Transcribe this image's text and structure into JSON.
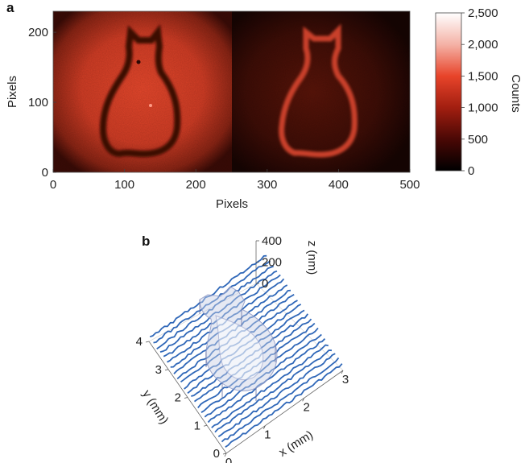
{
  "panels": {
    "a": {
      "letter": "a",
      "xlabel": "Pixels",
      "ylabel": "Pixels",
      "x_ticks": [
        "0",
        "100",
        "200",
        "300",
        "400",
        "500"
      ],
      "y_ticks": [
        "0",
        "100",
        "200"
      ],
      "colorbar": {
        "label": "Counts",
        "ticks": [
          "0",
          "500",
          "1,000",
          "1,500",
          "2,000",
          "2,500"
        ],
        "colors": [
          "#000000",
          "#4a0805",
          "#a21e10",
          "#e8442a",
          "#f4b2a6",
          "#ffffff"
        ]
      }
    },
    "b": {
      "letter": "b",
      "xlabel": "x (mm)",
      "ylabel": "y (mm)",
      "zlabel": "z (nm)",
      "x_ticks": [
        "0",
        "1",
        "2",
        "3"
      ],
      "y_ticks": [
        "0",
        "1",
        "2",
        "3",
        "4"
      ],
      "z_ticks": [
        "0",
        "200",
        "400"
      ],
      "trace_color": "#2f67b8"
    }
  },
  "chart_data": [
    {
      "type": "heatmap",
      "xlabel": "Pixels",
      "ylabel": "Pixels",
      "xlim": [
        0,
        500
      ],
      "ylim": [
        0,
        230
      ],
      "colorbar_label": "Counts",
      "colorbar_range": [
        0,
        2500
      ]
    },
    {
      "type": "line",
      "xlabel": "x (mm)",
      "ylabel": "y (mm)",
      "zlabel": "z (nm)",
      "xlim": [
        0,
        3
      ],
      "ylim": [
        0,
        4
      ],
      "zlim": [
        0,
        400
      ]
    }
  ]
}
